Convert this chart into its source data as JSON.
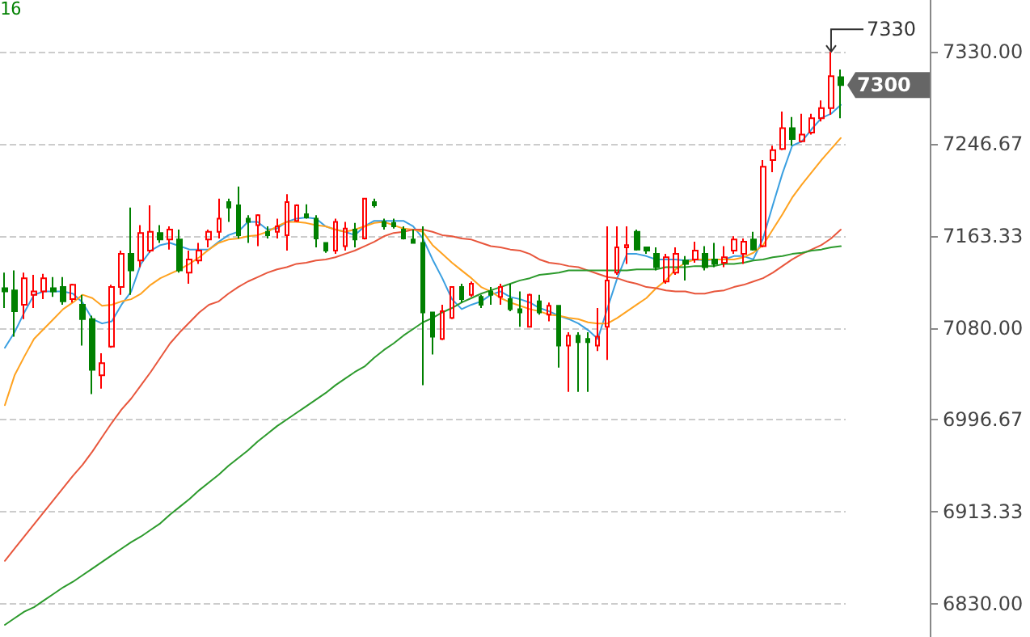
{
  "chart_data": {
    "type": "candlestick",
    "categories": [
      null,
      null,
      null,
      null,
      null,
      null,
      null,
      null,
      null,
      null,
      null,
      null,
      null,
      null,
      null,
      null,
      null,
      null,
      null,
      null,
      null,
      null,
      null,
      null,
      null,
      null,
      null,
      null,
      null,
      null,
      null,
      null,
      null,
      null,
      null,
      null,
      null,
      null,
      null,
      null,
      null,
      null,
      null,
      null,
      null,
      null,
      null,
      null,
      null,
      null,
      null,
      null,
      null,
      null,
      null,
      null,
      null,
      null,
      null,
      null,
      null,
      null,
      null,
      null,
      null,
      null,
      null,
      null,
      null,
      null,
      null,
      null,
      null,
      null,
      null,
      null,
      null,
      null,
      null,
      null,
      null,
      null,
      null,
      null,
      null,
      null,
      null
    ],
    "ohlc": [
      [
        7116,
        7130,
        7098,
        7113
      ],
      [
        7114,
        7132,
        7072,
        7095
      ],
      [
        7101,
        7130,
        7088,
        7125
      ],
      [
        7110,
        7128,
        7098,
        7113
      ],
      [
        7113,
        7129,
        7106,
        7125
      ],
      [
        7116,
        7126,
        7108,
        7113
      ],
      [
        7117,
        7126,
        7101,
        7104
      ],
      [
        7106,
        7120,
        7103,
        7119
      ],
      [
        7101,
        7110,
        7064,
        7088
      ],
      [
        7088,
        7091,
        7020,
        7042
      ],
      [
        7037,
        7057,
        7025,
        7048
      ],
      [
        7063,
        7119,
        7062,
        7117
      ],
      [
        7117,
        7150,
        7110,
        7147
      ],
      [
        7147,
        7189,
        7110,
        7132
      ],
      [
        7141,
        7173,
        7135,
        7166
      ],
      [
        7150,
        7191,
        7148,
        7167
      ],
      [
        7166,
        7173,
        7157,
        7160
      ],
      [
        7160,
        7172,
        7151,
        7169
      ],
      [
        7160,
        7169,
        7130,
        7132
      ],
      [
        7130,
        7150,
        7120,
        7142
      ],
      [
        7141,
        7157,
        7138,
        7150
      ],
      [
        7160,
        7169,
        7153,
        7167
      ],
      [
        7167,
        7197,
        7161,
        7179
      ],
      [
        7194,
        7197,
        7176,
        7189
      ],
      [
        7191,
        7208,
        7161,
        7164
      ],
      [
        7179,
        7182,
        7157,
        7176
      ],
      [
        7173,
        7183,
        7154,
        7182
      ],
      [
        7167,
        7172,
        7161,
        7164
      ],
      [
        7167,
        7179,
        7161,
        7172
      ],
      [
        7164,
        7201,
        7150,
        7194
      ],
      [
        7177,
        7192,
        7176,
        7191
      ],
      [
        7183,
        7192,
        7179,
        7180
      ],
      [
        7179,
        7182,
        7153,
        7161
      ],
      [
        7157,
        7157,
        7148,
        7150
      ],
      [
        7150,
        7179,
        7147,
        7176
      ],
      [
        7154,
        7176,
        7150,
        7170
      ],
      [
        7169,
        7175,
        7153,
        7160
      ],
      [
        7161,
        7197,
        7160,
        7197
      ],
      [
        7194,
        7197,
        7189,
        7191
      ],
      [
        7176,
        7179,
        7169,
        7172
      ],
      [
        7175,
        7179,
        7170,
        7172
      ],
      [
        7169,
        7172,
        7160,
        7161
      ],
      [
        7160,
        7169,
        7157,
        7157
      ],
      [
        7157,
        7172,
        7028,
        7094
      ],
      [
        7094,
        7094,
        7056,
        7072
      ],
      [
        7070,
        7101,
        7069,
        7095
      ],
      [
        7089,
        7117,
        7088,
        7117
      ],
      [
        7117,
        7120,
        7103,
        7106
      ],
      [
        7110,
        7122,
        7108,
        7120
      ],
      [
        7108,
        7110,
        7098,
        7101
      ],
      [
        7113,
        7117,
        7101,
        7110
      ],
      [
        7108,
        7120,
        7101,
        7117
      ],
      [
        7106,
        7120,
        7095,
        7097
      ],
      [
        7097,
        7113,
        7081,
        7094
      ],
      [
        7081,
        7111,
        7081,
        7110
      ],
      [
        7104,
        7110,
        7092,
        7094
      ],
      [
        7092,
        7103,
        7086,
        7100
      ],
      [
        7100,
        7100,
        7044,
        7064
      ],
      [
        7064,
        7076,
        7022,
        7073
      ],
      [
        7073,
        7076,
        7022,
        7067
      ],
      [
        7070,
        7076,
        7022,
        7067
      ],
      [
        7064,
        7098,
        7059,
        7072
      ],
      [
        7081,
        7172,
        7051,
        7123
      ],
      [
        7130,
        7172,
        7128,
        7153
      ],
      [
        7153,
        7172,
        7138,
        7155
      ],
      [
        7167,
        7169,
        7150,
        7151
      ],
      [
        7153,
        7153,
        7147,
        7150
      ],
      [
        7147,
        7153,
        7132,
        7135
      ],
      [
        7122,
        7147,
        7120,
        7144
      ],
      [
        7130,
        7153,
        7128,
        7147
      ],
      [
        7141,
        7145,
        7123,
        7138
      ],
      [
        7142,
        7158,
        7139,
        7150
      ],
      [
        7147,
        7154,
        7132,
        7135
      ],
      [
        7142,
        7157,
        7135,
        7138
      ],
      [
        7139,
        7154,
        7135,
        7144
      ],
      [
        7150,
        7163,
        7147,
        7160
      ],
      [
        7147,
        7161,
        7138,
        7158
      ],
      [
        7160,
        7167,
        7150,
        7151
      ],
      [
        7154,
        7232,
        7153,
        7226
      ],
      [
        7232,
        7245,
        7221,
        7241
      ],
      [
        7242,
        7276,
        7241,
        7261
      ],
      [
        7261,
        7271,
        7245,
        7251
      ],
      [
        7249,
        7274,
        7248,
        7255
      ],
      [
        7257,
        7274,
        7255,
        7270
      ],
      [
        7270,
        7286,
        7267,
        7279
      ],
      [
        7279,
        7330,
        7273,
        7308
      ],
      [
        7307,
        7314,
        7270,
        7300
      ]
    ],
    "colors": [
      "#008000",
      "#008000",
      "#ff0000",
      "#ff0000",
      "#ff0000",
      "#008000",
      "#008000",
      "#ff0000",
      "#008000",
      "#008000",
      "#ff0000",
      "#ff0000",
      "#ff0000",
      "#008000",
      "#ff0000",
      "#ff0000",
      "#008000",
      "#ff0000",
      "#008000",
      "#ff0000",
      "#ff0000",
      "#ff0000",
      "#ff0000",
      "#008000",
      "#008000",
      "#008000",
      "#ff0000",
      "#008000",
      "#ff0000",
      "#ff0000",
      "#ff0000",
      "#008000",
      "#008000",
      "#008000",
      "#ff0000",
      "#ff0000",
      "#008000",
      "#ff0000",
      "#008000",
      "#008000",
      "#008000",
      "#008000",
      "#008000",
      "#008000",
      "#008000",
      "#ff0000",
      "#ff0000",
      "#008000",
      "#ff0000",
      "#008000",
      "#008000",
      "#ff0000",
      "#008000",
      "#008000",
      "#ff0000",
      "#008000",
      "#ff0000",
      "#008000",
      "#ff0000",
      "#008000",
      "#008000",
      "#ff0000",
      "#ff0000",
      "#ff0000",
      "#ff0000",
      "#008000",
      "#008000",
      "#008000",
      "#ff0000",
      "#ff0000",
      "#008000",
      "#ff0000",
      "#008000",
      "#008000",
      "#ff0000",
      "#ff0000",
      "#ff0000",
      "#008000",
      "#ff0000",
      "#ff0000",
      "#ff0000",
      "#008000",
      "#ff0000",
      "#ff0000",
      "#ff0000",
      "#ff0000",
      "#008000"
    ],
    "series": [
      {
        "type": "line",
        "color": "#3a9fe0",
        "values": [
          7062,
          7076,
          7094,
          7110,
          7113,
          7113,
          7113,
          7111,
          7103,
          7088,
          7084,
          7086,
          7101,
          7113,
          7138,
          7150,
          7155,
          7157,
          7154,
          7151,
          7151,
          7151,
          7158,
          7164,
          7167,
          7176,
          7176,
          7169,
          7170,
          7176,
          7179,
          7180,
          7179,
          7172,
          7169,
          7167,
          7164,
          7172,
          7177,
          7177,
          7177,
          7177,
          7172,
          7161,
          7142,
          7125,
          7106,
          7097,
          7101,
          7104,
          7110,
          7113,
          7108,
          7106,
          7103,
          7098,
          7095,
          7091,
          7088,
          7084,
          7078,
          7070,
          7098,
          7125,
          7147,
          7147,
          7145,
          7142,
          7142,
          7142,
          7141,
          7142,
          7141,
          7142,
          7142,
          7145,
          7145,
          7142,
          7161,
          7191,
          7220,
          7245,
          7249,
          7260,
          7270,
          7274,
          7282
        ]
      },
      {
        "type": "line",
        "color": "#ffa21f",
        "values": [
          7010,
          7037,
          7054,
          7070,
          7079,
          7088,
          7097,
          7103,
          7110,
          7107,
          7100,
          7101,
          7104,
          7106,
          7111,
          7119,
          7125,
          7129,
          7133,
          7138,
          7144,
          7151,
          7157,
          7160,
          7161,
          7163,
          7164,
          7167,
          7172,
          7176,
          7176,
          7175,
          7173,
          7172,
          7169,
          7167,
          7169,
          7172,
          7175,
          7176,
          7173,
          7170,
          7169,
          7167,
          7155,
          7147,
          7139,
          7132,
          7125,
          7117,
          7113,
          7107,
          7103,
          7100,
          7097,
          7095,
          7092,
          7091,
          7089,
          7088,
          7085,
          7084,
          7084,
          7089,
          7095,
          7101,
          7107,
          7116,
          7123,
          7133,
          7139,
          7142,
          7142,
          7142,
          7142,
          7142,
          7144,
          7148,
          7155,
          7169,
          7183,
          7198,
          7210,
          7221,
          7232,
          7242,
          7252
        ]
      },
      {
        "type": "line",
        "color": "#e8563c",
        "values": [
          6869,
          6880,
          6891,
          6902,
          6913,
          6924,
          6935,
          6946,
          6956,
          6968,
          6981,
          6994,
          7006,
          7016,
          7028,
          7040,
          7053,
          7066,
          7076,
          7085,
          7094,
          7101,
          7104,
          7111,
          7117,
          7122,
          7126,
          7130,
          7133,
          7135,
          7138,
          7139,
          7141,
          7142,
          7144,
          7147,
          7150,
          7154,
          7158,
          7163,
          7166,
          7167,
          7169,
          7169,
          7167,
          7164,
          7163,
          7161,
          7160,
          7157,
          7154,
          7153,
          7151,
          7150,
          7147,
          7142,
          7139,
          7138,
          7136,
          7135,
          7132,
          7129,
          7126,
          7125,
          7122,
          7120,
          7117,
          7116,
          7114,
          7113,
          7113,
          7111,
          7111,
          7113,
          7114,
          7117,
          7119,
          7122,
          7125,
          7130,
          7136,
          7142,
          7147,
          7151,
          7155,
          7161,
          7169
        ]
      },
      {
        "type": "line",
        "color": "#2c9a2c",
        "values": [
          6811,
          6817,
          6823,
          6827,
          6833,
          6839,
          6845,
          6850,
          6856,
          6862,
          6868,
          6874,
          6880,
          6886,
          6891,
          6897,
          6903,
          6911,
          6918,
          6925,
          6933,
          6940,
          6947,
          6955,
          6962,
          6969,
          6977,
          6984,
          6991,
          6997,
          7003,
          7009,
          7015,
          7021,
          7028,
          7034,
          7040,
          7045,
          7053,
          7060,
          7066,
          7073,
          7079,
          7085,
          7089,
          7094,
          7098,
          7103,
          7107,
          7111,
          7114,
          7117,
          7120,
          7123,
          7125,
          7128,
          7129,
          7130,
          7132,
          7132,
          7132,
          7132,
          7132,
          7132,
          7132,
          7133,
          7133,
          7133,
          7135,
          7135,
          7135,
          7136,
          7136,
          7136,
          7138,
          7138,
          7139,
          7141,
          7142,
          7144,
          7145,
          7147,
          7148,
          7150,
          7151,
          7153,
          7154
        ]
      }
    ],
    "ylim": [
      6800,
      7377
    ],
    "yticks": [
      {
        "value": 6830,
        "label": "6830.00"
      },
      {
        "value": 6913.33,
        "label": "6913.33"
      },
      {
        "value": 6996.67,
        "label": "6996.67"
      },
      {
        "value": 7080,
        "label": "7080.00"
      },
      {
        "value": 7163.33,
        "label": "7163.33"
      },
      {
        "value": 7246.67,
        "label": "7246.67"
      },
      {
        "value": 7330,
        "label": "7330.00"
      }
    ],
    "grid": "y",
    "tick_labels": "y",
    "annotations": [
      "16",
      "7330",
      "7300"
    ]
  }
}
